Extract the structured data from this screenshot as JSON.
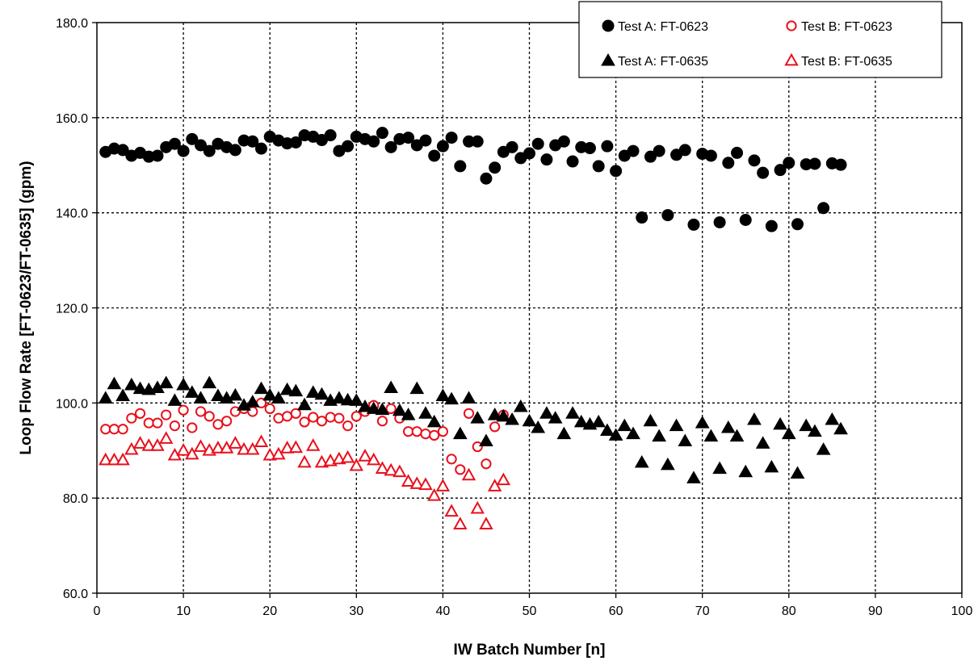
{
  "chart_data": {
    "type": "scatter",
    "title": "",
    "xlabel": "IW Batch Number [n]",
    "ylabel": "Loop Flow Rate [FT-0623/FT-0635] (gpm)",
    "xlim": [
      0,
      100
    ],
    "ylim": [
      60,
      180
    ],
    "x_ticks": [
      "0",
      "10",
      "20",
      "30",
      "40",
      "50",
      "60",
      "70",
      "80",
      "90",
      "100"
    ],
    "y_ticks": [
      "60.0",
      "80.0",
      "100.0",
      "120.0",
      "140.0",
      "160.0",
      "180.0"
    ],
    "grid": true,
    "legend_position": "top-right",
    "series": [
      {
        "name": "Test A: FT-0623",
        "marker": "circle",
        "filled": true,
        "color": "#000000",
        "points": [
          [
            1,
            152.8
          ],
          [
            2,
            153.5
          ],
          [
            3,
            153.2
          ],
          [
            4,
            152.0
          ],
          [
            5,
            152.6
          ],
          [
            6,
            151.8
          ],
          [
            7,
            152.0
          ],
          [
            8,
            153.8
          ],
          [
            9,
            154.5
          ],
          [
            10,
            153.0
          ],
          [
            11,
            155.5
          ],
          [
            12,
            154.2
          ],
          [
            13,
            153.0
          ],
          [
            14,
            154.5
          ],
          [
            15,
            153.8
          ],
          [
            16,
            153.2
          ],
          [
            17,
            155.2
          ],
          [
            18,
            155.0
          ],
          [
            19,
            153.5
          ],
          [
            20,
            156.0
          ],
          [
            21,
            155.2
          ],
          [
            22,
            154.6
          ],
          [
            23,
            154.8
          ],
          [
            24,
            156.3
          ],
          [
            25,
            156.0
          ],
          [
            26,
            155.3
          ],
          [
            27,
            156.3
          ],
          [
            28,
            153.0
          ],
          [
            29,
            154.0
          ],
          [
            30,
            156.0
          ],
          [
            31,
            155.5
          ],
          [
            32,
            155.0
          ],
          [
            33,
            156.8
          ],
          [
            34,
            153.8
          ],
          [
            35,
            155.5
          ],
          [
            36,
            155.8
          ],
          [
            37,
            154.2
          ],
          [
            38,
            155.2
          ],
          [
            39,
            152.0
          ],
          [
            40,
            154.0
          ],
          [
            41,
            155.8
          ],
          [
            42,
            149.8
          ],
          [
            43,
            155.0
          ],
          [
            44,
            155.0
          ],
          [
            45,
            147.2
          ],
          [
            46,
            149.5
          ],
          [
            47,
            152.8
          ],
          [
            48,
            153.8
          ],
          [
            49,
            151.5
          ],
          [
            50,
            152.5
          ],
          [
            51,
            154.5
          ],
          [
            52,
            151.2
          ],
          [
            53,
            154.2
          ],
          [
            54,
            155.0
          ],
          [
            55,
            150.8
          ],
          [
            56,
            153.8
          ],
          [
            57,
            153.6
          ],
          [
            58,
            149.8
          ],
          [
            59,
            154.0
          ],
          [
            60,
            148.8
          ],
          [
            61,
            152.0
          ],
          [
            62,
            153.0
          ],
          [
            63,
            139.0
          ],
          [
            64,
            151.8
          ],
          [
            65,
            153.0
          ],
          [
            66,
            139.5
          ],
          [
            67,
            152.2
          ],
          [
            68,
            153.2
          ],
          [
            69,
            137.5
          ],
          [
            70,
            152.4
          ],
          [
            71,
            152.0
          ],
          [
            72,
            138.0
          ],
          [
            73,
            150.5
          ],
          [
            74,
            152.6
          ],
          [
            75,
            138.5
          ],
          [
            76,
            151.0
          ],
          [
            77,
            148.4
          ],
          [
            78,
            137.2
          ],
          [
            79,
            149.0
          ],
          [
            80,
            150.5
          ],
          [
            81,
            137.6
          ],
          [
            82,
            150.2
          ],
          [
            83,
            150.3
          ],
          [
            84,
            141.0
          ],
          [
            85,
            150.4
          ],
          [
            86,
            150.1
          ]
        ]
      },
      {
        "name": "Test B: FT-0623",
        "marker": "circle",
        "filled": false,
        "color": "#e8101c",
        "points": [
          [
            1,
            94.5
          ],
          [
            2,
            94.5
          ],
          [
            3,
            94.5
          ],
          [
            4,
            96.8
          ],
          [
            5,
            97.8
          ],
          [
            6,
            95.8
          ],
          [
            7,
            95.8
          ],
          [
            8,
            97.5
          ],
          [
            9,
            95.2
          ],
          [
            10,
            98.5
          ],
          [
            11,
            94.8
          ],
          [
            12,
            98.2
          ],
          [
            13,
            97.2
          ],
          [
            14,
            95.5
          ],
          [
            15,
            96.2
          ],
          [
            16,
            98.2
          ],
          [
            17,
            98.8
          ],
          [
            18,
            98.2
          ],
          [
            19,
            100.0
          ],
          [
            20,
            98.8
          ],
          [
            21,
            96.8
          ],
          [
            22,
            97.2
          ],
          [
            23,
            97.8
          ],
          [
            24,
            96.0
          ],
          [
            25,
            97.0
          ],
          [
            26,
            96.2
          ],
          [
            27,
            97.0
          ],
          [
            28,
            96.8
          ],
          [
            29,
            95.2
          ],
          [
            30,
            97.2
          ],
          [
            31,
            98.2
          ],
          [
            32,
            99.5
          ],
          [
            33,
            96.2
          ],
          [
            34,
            98.8
          ],
          [
            35,
            96.8
          ],
          [
            36,
            94.0
          ],
          [
            37,
            94.0
          ],
          [
            38,
            93.5
          ],
          [
            39,
            93.2
          ],
          [
            40,
            94.0
          ],
          [
            41,
            88.2
          ],
          [
            42,
            86.0
          ],
          [
            43,
            97.8
          ],
          [
            44,
            90.8
          ],
          [
            45,
            87.2
          ],
          [
            46,
            95.0
          ],
          [
            47,
            97.5
          ]
        ]
      },
      {
        "name": "Test A: FT-0635",
        "marker": "triangle",
        "filled": true,
        "color": "#000000",
        "points": [
          [
            1,
            101.0
          ],
          [
            2,
            104.0
          ],
          [
            3,
            101.5
          ],
          [
            4,
            103.8
          ],
          [
            5,
            103.0
          ],
          [
            6,
            102.8
          ],
          [
            7,
            103.2
          ],
          [
            8,
            104.2
          ],
          [
            9,
            100.5
          ],
          [
            10,
            103.8
          ],
          [
            11,
            102.2
          ],
          [
            12,
            101.0
          ],
          [
            13,
            104.2
          ],
          [
            14,
            101.5
          ],
          [
            15,
            101.0
          ],
          [
            16,
            101.6
          ],
          [
            17,
            99.5
          ],
          [
            18,
            100.2
          ],
          [
            19,
            103.0
          ],
          [
            20,
            101.6
          ],
          [
            21,
            101.0
          ],
          [
            22,
            102.8
          ],
          [
            23,
            102.5
          ],
          [
            24,
            99.6
          ],
          [
            25,
            102.2
          ],
          [
            26,
            101.8
          ],
          [
            27,
            100.5
          ],
          [
            28,
            101.0
          ],
          [
            29,
            100.6
          ],
          [
            30,
            100.5
          ],
          [
            31,
            99.2
          ],
          [
            32,
            98.8
          ],
          [
            33,
            98.6
          ],
          [
            34,
            103.2
          ],
          [
            35,
            98.4
          ],
          [
            36,
            97.5
          ],
          [
            37,
            103.0
          ],
          [
            38,
            97.8
          ],
          [
            39,
            96.0
          ],
          [
            40,
            101.5
          ],
          [
            41,
            100.8
          ],
          [
            42,
            93.5
          ],
          [
            43,
            101.0
          ],
          [
            44,
            96.8
          ],
          [
            45,
            92.0
          ],
          [
            46,
            97.5
          ],
          [
            47,
            97.2
          ],
          [
            48,
            96.5
          ],
          [
            49,
            99.2
          ],
          [
            50,
            96.2
          ],
          [
            51,
            94.8
          ],
          [
            52,
            97.8
          ],
          [
            53,
            96.8
          ],
          [
            54,
            93.5
          ],
          [
            55,
            97.8
          ],
          [
            56,
            96.0
          ],
          [
            57,
            95.5
          ],
          [
            58,
            96.0
          ],
          [
            59,
            94.2
          ],
          [
            60,
            93.2
          ],
          [
            61,
            95.2
          ],
          [
            62,
            93.5
          ],
          [
            63,
            87.5
          ],
          [
            64,
            96.2
          ],
          [
            65,
            93.0
          ],
          [
            66,
            87.0
          ],
          [
            67,
            95.2
          ],
          [
            68,
            92.0
          ],
          [
            69,
            84.2
          ],
          [
            70,
            95.8
          ],
          [
            71,
            93.0
          ],
          [
            72,
            86.2
          ],
          [
            73,
            94.8
          ],
          [
            74,
            93.0
          ],
          [
            75,
            85.5
          ],
          [
            76,
            96.5
          ],
          [
            77,
            91.5
          ],
          [
            78,
            86.5
          ],
          [
            79,
            95.5
          ],
          [
            80,
            93.5
          ],
          [
            81,
            85.2
          ],
          [
            82,
            95.2
          ],
          [
            83,
            94.0
          ],
          [
            84,
            90.2
          ],
          [
            85,
            96.5
          ],
          [
            86,
            94.5
          ]
        ]
      },
      {
        "name": "Test B: FT-0635",
        "marker": "triangle",
        "filled": false,
        "color": "#e8101c",
        "points": [
          [
            1,
            88.0
          ],
          [
            2,
            88.0
          ],
          [
            3,
            88.0
          ],
          [
            4,
            90.2
          ],
          [
            5,
            91.5
          ],
          [
            6,
            91.0
          ],
          [
            7,
            91.0
          ],
          [
            8,
            92.5
          ],
          [
            9,
            89.0
          ],
          [
            10,
            90.0
          ],
          [
            11,
            89.2
          ],
          [
            12,
            90.8
          ],
          [
            13,
            90.0
          ],
          [
            14,
            90.5
          ],
          [
            15,
            90.5
          ],
          [
            16,
            91.5
          ],
          [
            17,
            90.2
          ],
          [
            18,
            90.2
          ],
          [
            19,
            91.8
          ],
          [
            20,
            89.0
          ],
          [
            21,
            89.2
          ],
          [
            22,
            90.5
          ],
          [
            23,
            90.6
          ],
          [
            24,
            87.5
          ],
          [
            25,
            91.0
          ],
          [
            26,
            87.5
          ],
          [
            27,
            87.8
          ],
          [
            28,
            88.2
          ],
          [
            29,
            88.5
          ],
          [
            30,
            86.8
          ],
          [
            31,
            88.8
          ],
          [
            32,
            88.0
          ],
          [
            33,
            86.2
          ],
          [
            34,
            85.8
          ],
          [
            35,
            85.5
          ],
          [
            36,
            83.5
          ],
          [
            37,
            83.0
          ],
          [
            38,
            82.8
          ],
          [
            39,
            80.5
          ],
          [
            40,
            82.5
          ],
          [
            41,
            77.2
          ],
          [
            42,
            74.5
          ],
          [
            43,
            84.8
          ],
          [
            44,
            77.8
          ],
          [
            45,
            74.5
          ],
          [
            46,
            82.5
          ],
          [
            47,
            83.8
          ]
        ]
      }
    ]
  }
}
